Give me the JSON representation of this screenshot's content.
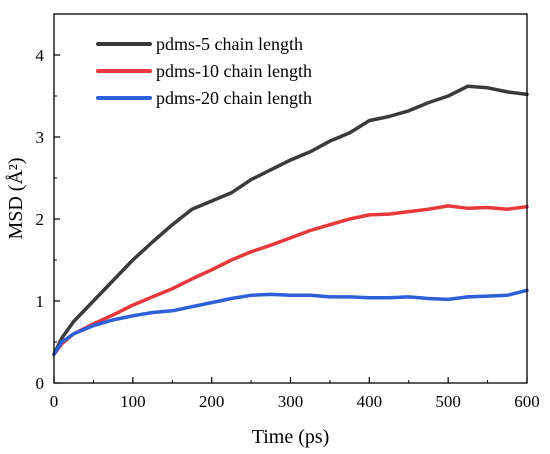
{
  "chart_data": {
    "type": "line",
    "title": "",
    "xlabel": "Time (ps)",
    "ylabel": "MSD (Å²)",
    "xlim": [
      0,
      600
    ],
    "ylim": [
      0,
      4.5
    ],
    "xticks": [
      0,
      100,
      200,
      300,
      400,
      500,
      600
    ],
    "yticks": [
      0,
      1,
      2,
      3,
      4
    ],
    "grid": false,
    "legend_position": "top-left",
    "x": [
      0,
      10,
      25,
      50,
      75,
      100,
      125,
      150,
      175,
      200,
      225,
      250,
      275,
      300,
      325,
      350,
      375,
      400,
      425,
      450,
      475,
      500,
      525,
      550,
      575,
      600
    ],
    "series": [
      {
        "name": "pdms-5 chain length",
        "color": "#3a3a3a",
        "values": [
          0.35,
          0.55,
          0.75,
          1.0,
          1.25,
          1.5,
          1.72,
          1.93,
          2.12,
          2.22,
          2.32,
          2.48,
          2.6,
          2.72,
          2.82,
          2.95,
          3.05,
          3.2,
          3.25,
          3.32,
          3.42,
          3.5,
          3.62,
          3.6,
          3.55,
          3.52
        ]
      },
      {
        "name": "pdms-10 chain length",
        "color": "#e8383b",
        "values": [
          0.35,
          0.48,
          0.6,
          0.72,
          0.83,
          0.95,
          1.05,
          1.15,
          1.27,
          1.38,
          1.5,
          1.6,
          1.68,
          1.77,
          1.86,
          1.93,
          2.0,
          2.05,
          2.06,
          2.09,
          2.12,
          2.16,
          2.13,
          2.14,
          2.12,
          2.15
        ]
      },
      {
        "name": "pdms-20 chain length",
        "color": "#2d5fd8",
        "values": [
          0.35,
          0.5,
          0.6,
          0.7,
          0.77,
          0.82,
          0.86,
          0.88,
          0.93,
          0.98,
          1.03,
          1.07,
          1.08,
          1.07,
          1.07,
          1.05,
          1.05,
          1.04,
          1.04,
          1.05,
          1.03,
          1.02,
          1.05,
          1.06,
          1.07,
          1.13
        ]
      }
    ]
  }
}
